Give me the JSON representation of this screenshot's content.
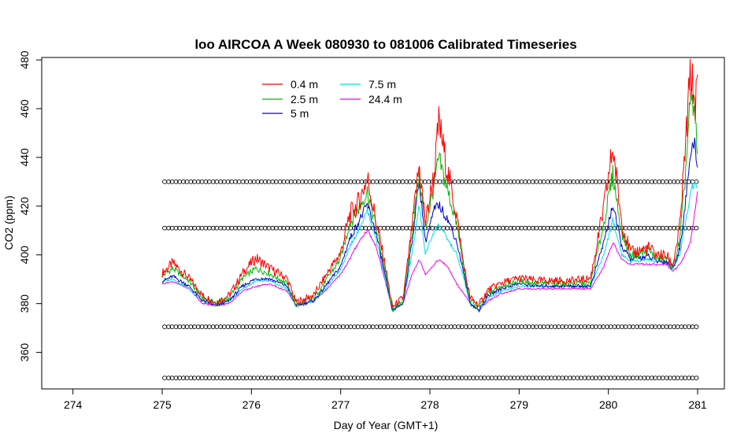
{
  "chart_data": {
    "type": "line",
    "title": "loo AIRCOA A  Week 080930 to 081006  Calibrated Timeseries",
    "xlabel": "Day of Year (GMT+1)",
    "ylabel": "CO2 (ppm)",
    "xlim": [
      273.65,
      281.3
    ],
    "ylim": [
      345,
      481
    ],
    "xticks": [
      274,
      275,
      276,
      277,
      278,
      279,
      280,
      281
    ],
    "yticks": [
      360,
      380,
      400,
      420,
      440,
      460,
      480
    ],
    "legend_position": "top-center",
    "grid": false,
    "series": [
      {
        "name": "0.4 m",
        "color": "#ff0000",
        "knots": [
          [
            275.0,
            392
          ],
          [
            275.12,
            396
          ],
          [
            275.3,
            390
          ],
          [
            275.45,
            383
          ],
          [
            275.6,
            380
          ],
          [
            275.75,
            383
          ],
          [
            275.9,
            392
          ],
          [
            276.05,
            398
          ],
          [
            276.2,
            394
          ],
          [
            276.4,
            390
          ],
          [
            276.5,
            380
          ],
          [
            276.7,
            383
          ],
          [
            276.85,
            392
          ],
          [
            277.0,
            400
          ],
          [
            277.1,
            415
          ],
          [
            277.2,
            420
          ],
          [
            277.3,
            430
          ],
          [
            277.4,
            412
          ],
          [
            277.5,
            395
          ],
          [
            277.58,
            378
          ],
          [
            277.7,
            382
          ],
          [
            277.8,
            410
          ],
          [
            277.88,
            435
          ],
          [
            277.95,
            412
          ],
          [
            278.05,
            432
          ],
          [
            278.1,
            452
          ],
          [
            278.2,
            432
          ],
          [
            278.3,
            415
          ],
          [
            278.38,
            395
          ],
          [
            278.45,
            382
          ],
          [
            278.55,
            379
          ],
          [
            278.65,
            385
          ],
          [
            278.8,
            388
          ],
          [
            279.0,
            390
          ],
          [
            279.2,
            389
          ],
          [
            279.4,
            389
          ],
          [
            279.6,
            389
          ],
          [
            279.8,
            390
          ],
          [
            279.95,
            418
          ],
          [
            280.05,
            442
          ],
          [
            280.15,
            412
          ],
          [
            280.25,
            400
          ],
          [
            280.45,
            402
          ],
          [
            280.55,
            399
          ],
          [
            280.65,
            399
          ],
          [
            280.72,
            395
          ],
          [
            280.8,
            410
          ],
          [
            280.86,
            440
          ],
          [
            280.92,
            472
          ],
          [
            280.97,
            460
          ],
          [
            281.0,
            465
          ]
        ]
      },
      {
        "name": "2.5 m",
        "color": "#00bb00",
        "knots": [
          [
            275.0,
            391
          ],
          [
            275.12,
            394
          ],
          [
            275.3,
            389
          ],
          [
            275.45,
            382
          ],
          [
            275.6,
            380
          ],
          [
            275.75,
            382
          ],
          [
            275.9,
            390
          ],
          [
            276.05,
            394
          ],
          [
            276.2,
            392
          ],
          [
            276.4,
            388
          ],
          [
            276.5,
            379
          ],
          [
            276.7,
            382
          ],
          [
            276.85,
            390
          ],
          [
            277.0,
            398
          ],
          [
            277.1,
            412
          ],
          [
            277.2,
            418
          ],
          [
            277.3,
            425
          ],
          [
            277.4,
            410
          ],
          [
            277.5,
            393
          ],
          [
            277.58,
            377
          ],
          [
            277.7,
            381
          ],
          [
            277.8,
            408
          ],
          [
            277.88,
            432
          ],
          [
            277.95,
            410
          ],
          [
            278.05,
            428
          ],
          [
            278.1,
            438
          ],
          [
            278.2,
            425
          ],
          [
            278.3,
            412
          ],
          [
            278.38,
            394
          ],
          [
            278.45,
            381
          ],
          [
            278.55,
            378
          ],
          [
            278.65,
            384
          ],
          [
            278.8,
            387
          ],
          [
            279.0,
            389
          ],
          [
            279.2,
            388
          ],
          [
            279.4,
            388
          ],
          [
            279.6,
            388
          ],
          [
            279.8,
            388
          ],
          [
            279.95,
            412
          ],
          [
            280.05,
            432
          ],
          [
            280.15,
            408
          ],
          [
            280.25,
            399
          ],
          [
            280.45,
            401
          ],
          [
            280.55,
            398
          ],
          [
            280.65,
            398
          ],
          [
            280.72,
            394
          ],
          [
            280.8,
            405
          ],
          [
            280.86,
            430
          ],
          [
            280.92,
            462
          ],
          [
            280.97,
            455
          ],
          [
            281.0,
            442
          ]
        ]
      },
      {
        "name": "5 m",
        "color": "#0000cc",
        "knots": [
          [
            275.0,
            389
          ],
          [
            275.12,
            391
          ],
          [
            275.3,
            387
          ],
          [
            275.45,
            381
          ],
          [
            275.6,
            379
          ],
          [
            275.75,
            381
          ],
          [
            275.9,
            387
          ],
          [
            276.05,
            390
          ],
          [
            276.2,
            390
          ],
          [
            276.4,
            387
          ],
          [
            276.5,
            379
          ],
          [
            276.7,
            381
          ],
          [
            276.85,
            388
          ],
          [
            277.0,
            395
          ],
          [
            277.1,
            406
          ],
          [
            277.2,
            413
          ],
          [
            277.3,
            420
          ],
          [
            277.4,
            408
          ],
          [
            277.5,
            391
          ],
          [
            277.58,
            377
          ],
          [
            277.7,
            380
          ],
          [
            277.8,
            405
          ],
          [
            277.88,
            430
          ],
          [
            277.95,
            405
          ],
          [
            278.05,
            418
          ],
          [
            278.1,
            420
          ],
          [
            278.2,
            414
          ],
          [
            278.3,
            405
          ],
          [
            278.38,
            392
          ],
          [
            278.45,
            380
          ],
          [
            278.55,
            377
          ],
          [
            278.65,
            383
          ],
          [
            278.8,
            386
          ],
          [
            279.0,
            388
          ],
          [
            279.2,
            387
          ],
          [
            279.4,
            387
          ],
          [
            279.6,
            387
          ],
          [
            279.8,
            387
          ],
          [
            279.95,
            405
          ],
          [
            280.05,
            420
          ],
          [
            280.15,
            403
          ],
          [
            280.25,
            398
          ],
          [
            280.45,
            399
          ],
          [
            280.55,
            397
          ],
          [
            280.65,
            397
          ],
          [
            280.72,
            394
          ],
          [
            280.8,
            402
          ],
          [
            280.86,
            420
          ],
          [
            280.92,
            440
          ],
          [
            280.97,
            445
          ],
          [
            281.0,
            435
          ]
        ]
      },
      {
        "name": "7.5 m",
        "color": "#00e0e0",
        "knots": [
          [
            275.0,
            389
          ],
          [
            275.12,
            390
          ],
          [
            275.3,
            386
          ],
          [
            275.45,
            381
          ],
          [
            275.6,
            379
          ],
          [
            275.75,
            381
          ],
          [
            275.9,
            386
          ],
          [
            276.05,
            389
          ],
          [
            276.2,
            389
          ],
          [
            276.4,
            386
          ],
          [
            276.5,
            379
          ],
          [
            276.7,
            381
          ],
          [
            276.85,
            387
          ],
          [
            277.0,
            394
          ],
          [
            277.1,
            403
          ],
          [
            277.2,
            410
          ],
          [
            277.3,
            418
          ],
          [
            277.4,
            406
          ],
          [
            277.5,
            390
          ],
          [
            277.58,
            377
          ],
          [
            277.7,
            380
          ],
          [
            277.8,
            400
          ],
          [
            277.88,
            420
          ],
          [
            277.95,
            400
          ],
          [
            278.05,
            410
          ],
          [
            278.1,
            412
          ],
          [
            278.2,
            406
          ],
          [
            278.3,
            400
          ],
          [
            278.38,
            390
          ],
          [
            278.45,
            380
          ],
          [
            278.55,
            377
          ],
          [
            278.65,
            382
          ],
          [
            278.8,
            385
          ],
          [
            279.0,
            387
          ],
          [
            279.2,
            387
          ],
          [
            279.4,
            387
          ],
          [
            279.6,
            387
          ],
          [
            279.8,
            387
          ],
          [
            279.95,
            400
          ],
          [
            280.05,
            414
          ],
          [
            280.15,
            400
          ],
          [
            280.25,
            397
          ],
          [
            280.45,
            398
          ],
          [
            280.55,
            397
          ],
          [
            280.65,
            397
          ],
          [
            280.72,
            394
          ],
          [
            280.8,
            400
          ],
          [
            280.86,
            412
          ],
          [
            280.92,
            425
          ],
          [
            280.97,
            430
          ],
          [
            281.0,
            428
          ]
        ]
      },
      {
        "name": "24.4 m",
        "color": "#ee00ee",
        "knots": [
          [
            275.0,
            388
          ],
          [
            275.12,
            389
          ],
          [
            275.3,
            386
          ],
          [
            275.45,
            380
          ],
          [
            275.6,
            379
          ],
          [
            275.75,
            380
          ],
          [
            275.9,
            385
          ],
          [
            276.05,
            387
          ],
          [
            276.2,
            388
          ],
          [
            276.4,
            385
          ],
          [
            276.5,
            379
          ],
          [
            276.7,
            381
          ],
          [
            276.85,
            386
          ],
          [
            277.0,
            392
          ],
          [
            277.1,
            398
          ],
          [
            277.2,
            405
          ],
          [
            277.3,
            410
          ],
          [
            277.4,
            403
          ],
          [
            277.5,
            389
          ],
          [
            277.58,
            377
          ],
          [
            277.7,
            380
          ],
          [
            277.8,
            392
          ],
          [
            277.88,
            398
          ],
          [
            277.95,
            392
          ],
          [
            278.05,
            396
          ],
          [
            278.1,
            398
          ],
          [
            278.2,
            395
          ],
          [
            278.3,
            388
          ],
          [
            278.38,
            384
          ],
          [
            278.45,
            380
          ],
          [
            278.55,
            377
          ],
          [
            278.65,
            381
          ],
          [
            278.8,
            384
          ],
          [
            279.0,
            386
          ],
          [
            279.2,
            386
          ],
          [
            279.4,
            386
          ],
          [
            279.6,
            386
          ],
          [
            279.8,
            386
          ],
          [
            279.95,
            395
          ],
          [
            280.05,
            405
          ],
          [
            280.15,
            398
          ],
          [
            280.25,
            396
          ],
          [
            280.45,
            396
          ],
          [
            280.55,
            396
          ],
          [
            280.65,
            396
          ],
          [
            280.72,
            393
          ],
          [
            280.8,
            396
          ],
          [
            280.86,
            400
          ],
          [
            280.92,
            405
          ],
          [
            280.97,
            418
          ],
          [
            281.0,
            425
          ]
        ]
      }
    ],
    "flag_markers": {
      "symbol": "open-circle",
      "levels": [
        430,
        411,
        370.5,
        349.5
      ],
      "x_start": 275.05,
      "x_end": 281.0,
      "step": 0.0833
    }
  }
}
